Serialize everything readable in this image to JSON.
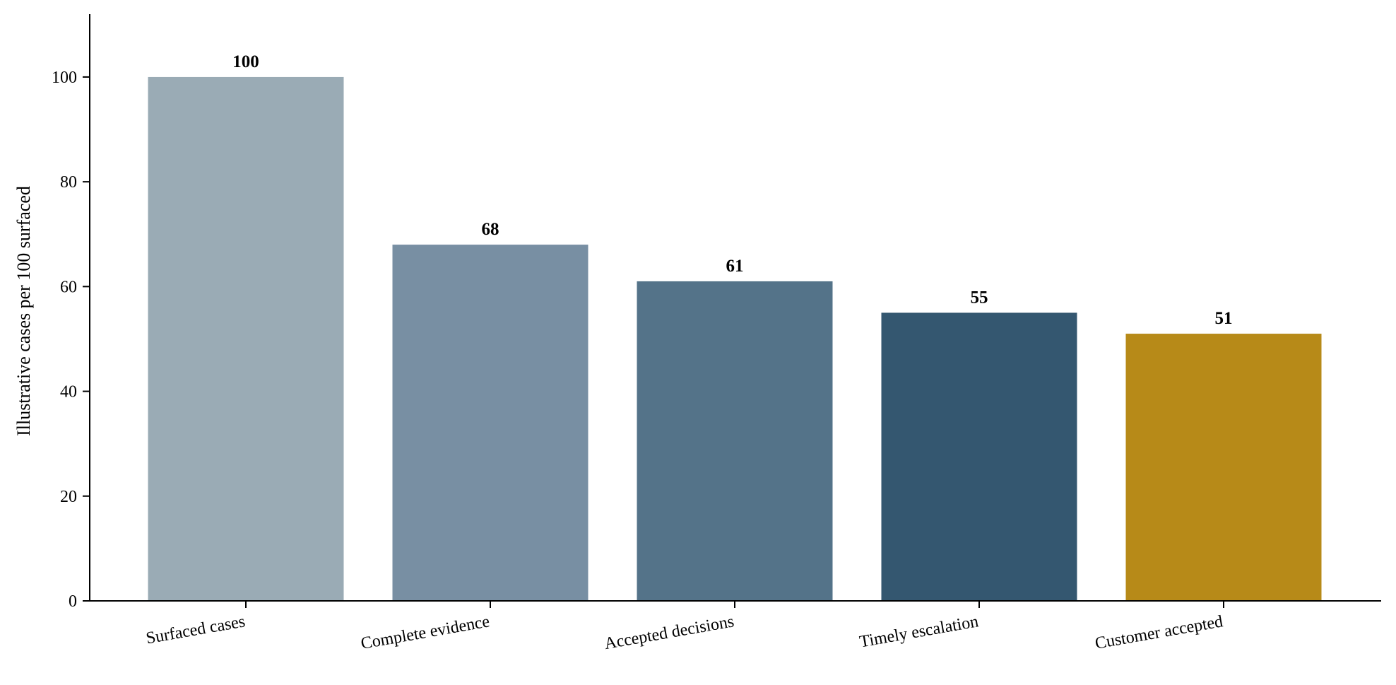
{
  "chart_data": {
    "type": "bar",
    "title": "",
    "xlabel": "",
    "ylabel": "Illustrative cases per 100 surfaced",
    "categories": [
      "Surfaced cases",
      "Complete evidence",
      "Accepted decisions",
      "Timely escalation",
      "Customer accepted"
    ],
    "values": [
      100,
      68,
      61,
      55,
      51
    ],
    "data_labels": [
      "100",
      "68",
      "61",
      "55",
      "51"
    ],
    "colors": [
      "#9aabb5",
      "#788fa3",
      "#547389",
      "#345770",
      "#b78a18"
    ],
    "ylim": [
      0,
      112
    ],
    "yticks": [
      0,
      20,
      40,
      60,
      80,
      100
    ],
    "grid": false,
    "legend": "none",
    "axis_color": "#000000"
  }
}
